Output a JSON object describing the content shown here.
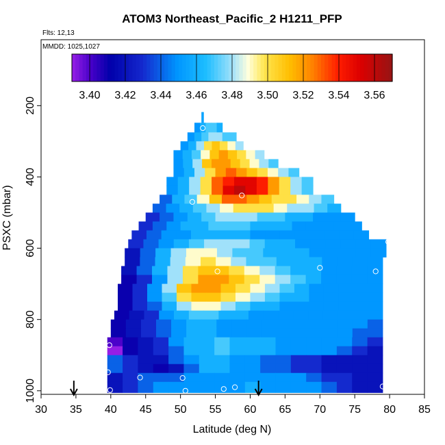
{
  "chart_data": {
    "type": "heatmap",
    "title": "ATOM3 Northeast_Pacific_2 H1211_PFP",
    "annotations": [
      "Flts: 12,13",
      "MMDD: 1025,1027"
    ],
    "xlabel": "Latitude (deg N)",
    "ylabel": "PSXC (mbar)",
    "xlim": [
      30,
      85
    ],
    "ylim": [
      1010,
      15
    ],
    "xticks": [
      "30",
      "35",
      "40",
      "45",
      "50",
      "55",
      "60",
      "65",
      "70",
      "75",
      "80",
      "85"
    ],
    "yticks": [
      "200",
      "400",
      "600",
      "800",
      "1000"
    ],
    "colorbar": {
      "range": [
        3.39,
        3.57
      ],
      "ticks": [
        "3.40",
        "3.42",
        "3.44",
        "3.46",
        "3.48",
        "3.50",
        "3.52",
        "3.54",
        "3.56"
      ]
    },
    "rows": [
      {
        "p1": 218,
        "p2": 248,
        "x0": 53.0,
        "x1": 53.3,
        "v": [
          3.455,
          3.455
        ]
      },
      {
        "p1": 248,
        "p2": 275,
        "x0": 52.0,
        "x1": 56.0,
        "v": [
          3.45,
          3.46,
          3.47,
          3.47,
          3.46
        ]
      },
      {
        "p1": 275,
        "p2": 300,
        "x0": 51.0,
        "x1": 58.0,
        "v": [
          3.45,
          3.46,
          3.47,
          3.48,
          3.48,
          3.47,
          3.47
        ]
      },
      {
        "p1": 300,
        "p2": 325,
        "x0": 50.0,
        "x1": 59.0,
        "v": [
          3.45,
          3.46,
          3.48,
          3.5,
          3.51,
          3.5,
          3.49,
          3.48
        ]
      },
      {
        "p1": 325,
        "p2": 350,
        "x0": 49.0,
        "x1": 62.0,
        "v": [
          3.45,
          3.46,
          3.47,
          3.49,
          3.51,
          3.52,
          3.51,
          3.5,
          3.49,
          3.48
        ]
      },
      {
        "p1": 350,
        "p2": 375,
        "x0": 49.0,
        "x1": 64.0,
        "v": [
          3.45,
          3.46,
          3.48,
          3.51,
          3.52,
          3.52,
          3.51,
          3.5,
          3.49,
          3.48,
          3.47
        ]
      },
      {
        "p1": 375,
        "p2": 400,
        "x0": 49.0,
        "x1": 67.0,
        "v": [
          3.45,
          3.46,
          3.48,
          3.5,
          3.52,
          3.53,
          3.52,
          3.51,
          3.5,
          3.49,
          3.48,
          3.47
        ]
      },
      {
        "p1": 400,
        "p2": 425,
        "x0": 48.0,
        "x1": 69.0,
        "v": [
          3.45,
          3.46,
          3.48,
          3.5,
          3.53,
          3.54,
          3.55,
          3.55,
          3.54,
          3.52,
          3.5,
          3.48,
          3.47
        ]
      },
      {
        "p1": 425,
        "p2": 450,
        "x0": 48.0,
        "x1": 69.0,
        "v": [
          3.45,
          3.46,
          3.48,
          3.5,
          3.53,
          3.55,
          3.56,
          3.55,
          3.54,
          3.52,
          3.5,
          3.48,
          3.47
        ]
      },
      {
        "p1": 450,
        "p2": 475,
        "x0": 47.0,
        "x1": 72.0,
        "v": [
          3.44,
          3.46,
          3.47,
          3.49,
          3.51,
          3.53,
          3.53,
          3.52,
          3.51,
          3.5,
          3.5,
          3.49,
          3.48,
          3.47
        ]
      },
      {
        "p1": 475,
        "p2": 500,
        "x0": 46.0,
        "x1": 73.0,
        "v": [
          3.44,
          3.45,
          3.46,
          3.47,
          3.48,
          3.49,
          3.5,
          3.5,
          3.5,
          3.49,
          3.48,
          3.48,
          3.47,
          3.46
        ]
      },
      {
        "p1": 500,
        "p2": 525,
        "x0": 45.0,
        "x1": 75.0,
        "v": [
          3.43,
          3.44,
          3.45,
          3.46,
          3.47,
          3.48,
          3.48,
          3.48,
          3.47,
          3.47,
          3.46,
          3.46,
          3.45,
          3.45,
          3.45
        ]
      },
      {
        "p1": 525,
        "p2": 550,
        "x0": 44.0,
        "x1": 76.0,
        "v": [
          3.43,
          3.44,
          3.45,
          3.46,
          3.46,
          3.47,
          3.47,
          3.47,
          3.46,
          3.46,
          3.46,
          3.45,
          3.45,
          3.45,
          3.45,
          3.45
        ]
      },
      {
        "p1": 550,
        "p2": 575,
        "x0": 43.0,
        "x1": 77.0,
        "v": [
          3.43,
          3.44,
          3.45,
          3.45,
          3.46,
          3.46,
          3.46,
          3.46,
          3.45,
          3.45,
          3.45,
          3.45,
          3.45,
          3.45,
          3.45,
          3.45
        ]
      },
      {
        "p1": 575,
        "p2": 600,
        "x0": 42.5,
        "x1": 79.5,
        "v": [
          3.43,
          3.44,
          3.45,
          3.46,
          3.47,
          3.48,
          3.48,
          3.48,
          3.47,
          3.46,
          3.46,
          3.45,
          3.45,
          3.45,
          3.45,
          3.45,
          3.45
        ]
      },
      {
        "p1": 600,
        "p2": 625,
        "x0": 42.0,
        "x1": 79.5,
        "v": [
          3.42,
          3.44,
          3.46,
          3.48,
          3.49,
          3.49,
          3.48,
          3.47,
          3.47,
          3.46,
          3.46,
          3.46,
          3.45,
          3.45,
          3.45,
          3.45,
          3.45
        ]
      },
      {
        "p1": 625,
        "p2": 650,
        "x0": 42.0,
        "x1": 79.0,
        "v": [
          3.42,
          3.44,
          3.46,
          3.48,
          3.49,
          3.5,
          3.49,
          3.48,
          3.47,
          3.47,
          3.46,
          3.46,
          3.46,
          3.45,
          3.45,
          3.45,
          3.45
        ]
      },
      {
        "p1": 650,
        "p2": 675,
        "x0": 41.5,
        "x1": 79.0,
        "v": [
          3.42,
          3.44,
          3.46,
          3.48,
          3.5,
          3.51,
          3.51,
          3.5,
          3.49,
          3.48,
          3.47,
          3.46,
          3.46,
          3.45,
          3.45,
          3.45,
          3.45
        ]
      },
      {
        "p1": 675,
        "p2": 700,
        "x0": 41.5,
        "x1": 79.0,
        "v": [
          3.41,
          3.43,
          3.45,
          3.48,
          3.5,
          3.52,
          3.52,
          3.51,
          3.5,
          3.49,
          3.48,
          3.47,
          3.46,
          3.45,
          3.45,
          3.45,
          3.45
        ]
      },
      {
        "p1": 700,
        "p2": 725,
        "x0": 41.0,
        "x1": 79.0,
        "v": [
          3.41,
          3.43,
          3.45,
          3.48,
          3.51,
          3.52,
          3.52,
          3.51,
          3.5,
          3.49,
          3.48,
          3.47,
          3.46,
          3.45,
          3.45,
          3.45,
          3.45,
          3.45
        ]
      },
      {
        "p1": 725,
        "p2": 750,
        "x0": 41.0,
        "x1": 79.0,
        "v": [
          3.41,
          3.43,
          3.45,
          3.47,
          3.5,
          3.51,
          3.51,
          3.5,
          3.49,
          3.48,
          3.47,
          3.46,
          3.46,
          3.45,
          3.45,
          3.45,
          3.45,
          3.45
        ]
      },
      {
        "p1": 750,
        "p2": 775,
        "x0": 41.0,
        "x1": 79.0,
        "v": [
          3.41,
          3.43,
          3.44,
          3.46,
          3.48,
          3.49,
          3.49,
          3.48,
          3.47,
          3.46,
          3.46,
          3.45,
          3.45,
          3.45,
          3.45,
          3.45,
          3.45,
          3.45
        ]
      },
      {
        "p1": 775,
        "p2": 800,
        "x0": 40.5,
        "x1": 79.0,
        "v": [
          3.41,
          3.42,
          3.43,
          3.45,
          3.46,
          3.47,
          3.47,
          3.46,
          3.46,
          3.45,
          3.45,
          3.45,
          3.45,
          3.45,
          3.45,
          3.45,
          3.45,
          3.45
        ]
      },
      {
        "p1": 800,
        "p2": 825,
        "x0": 40.0,
        "x1": 79.0,
        "v": [
          3.41,
          3.42,
          3.43,
          3.44,
          3.45,
          3.46,
          3.46,
          3.45,
          3.45,
          3.45,
          3.45,
          3.45,
          3.45,
          3.45,
          3.45,
          3.45,
          3.45,
          3.44
        ]
      },
      {
        "p1": 825,
        "p2": 850,
        "x0": 40.0,
        "x1": 79.0,
        "v": [
          3.41,
          3.42,
          3.43,
          3.44,
          3.45,
          3.46,
          3.46,
          3.45,
          3.45,
          3.45,
          3.45,
          3.45,
          3.45,
          3.45,
          3.45,
          3.45,
          3.44,
          3.44
        ]
      },
      {
        "p1": 850,
        "p2": 875,
        "x0": 39.5,
        "x1": 79.0,
        "v": [
          3.4,
          3.41,
          3.42,
          3.43,
          3.45,
          3.46,
          3.46,
          3.47,
          3.46,
          3.46,
          3.46,
          3.45,
          3.45,
          3.45,
          3.45,
          3.45,
          3.44,
          3.43
        ]
      },
      {
        "p1": 875,
        "p2": 900,
        "x0": 39.5,
        "x1": 79.0,
        "v": [
          3.39,
          3.41,
          3.42,
          3.43,
          3.44,
          3.46,
          3.46,
          3.47,
          3.46,
          3.46,
          3.46,
          3.45,
          3.45,
          3.45,
          3.45,
          3.44,
          3.43,
          3.42
        ]
      },
      {
        "p1": 900,
        "p2": 925,
        "x0": 39.5,
        "x1": 79.0,
        "v": [
          3.44,
          3.43,
          3.42,
          3.42,
          3.44,
          3.45,
          3.46,
          3.46,
          3.45,
          3.45,
          3.44,
          3.44,
          3.43,
          3.43,
          3.42,
          3.42,
          3.42,
          3.42
        ]
      },
      {
        "p1": 925,
        "p2": 950,
        "x0": 39.5,
        "x1": 79.0,
        "v": [
          3.44,
          3.43,
          3.42,
          3.41,
          3.42,
          3.44,
          3.46,
          3.46,
          3.45,
          3.45,
          3.44,
          3.44,
          3.43,
          3.43,
          3.42,
          3.42,
          3.42,
          3.42
        ]
      },
      {
        "p1": 950,
        "p2": 975,
        "x0": 39.5,
        "x1": 79.0,
        "v": [
          3.42,
          3.43,
          3.44,
          3.44,
          3.44,
          3.45,
          3.45,
          3.45,
          3.45,
          3.45,
          3.45,
          3.45,
          3.45,
          3.44,
          3.43,
          3.43,
          3.42,
          3.42
        ]
      },
      {
        "p1": 975,
        "p2": 1005,
        "x0": 39.5,
        "x1": 79.0,
        "v": [
          3.42,
          3.43,
          3.44,
          3.45,
          3.45,
          3.45,
          3.45,
          3.45,
          3.45,
          3.46,
          3.45,
          3.45,
          3.45,
          3.45,
          3.44,
          3.43,
          3.42,
          3.42
        ]
      }
    ],
    "samples": [
      {
        "lat": 53.2,
        "p": 263
      },
      {
        "lat": 58.8,
        "p": 452
      },
      {
        "lat": 51.7,
        "p": 470
      },
      {
        "lat": 79.8,
        "p": 582
      },
      {
        "lat": 55.3,
        "p": 665
      },
      {
        "lat": 70.0,
        "p": 655
      },
      {
        "lat": 78.0,
        "p": 665
      },
      {
        "lat": 39.8,
        "p": 872
      },
      {
        "lat": 39.6,
        "p": 948
      },
      {
        "lat": 44.2,
        "p": 963
      },
      {
        "lat": 50.3,
        "p": 964
      },
      {
        "lat": 57.8,
        "p": 990
      },
      {
        "lat": 56.2,
        "p": 995
      },
      {
        "lat": 39.9,
        "p": 998
      },
      {
        "lat": 50.7,
        "p": 1000
      },
      {
        "lat": 79.0,
        "p": 988
      }
    ],
    "arrows_lat": [
      34.7,
      61.2
    ]
  }
}
